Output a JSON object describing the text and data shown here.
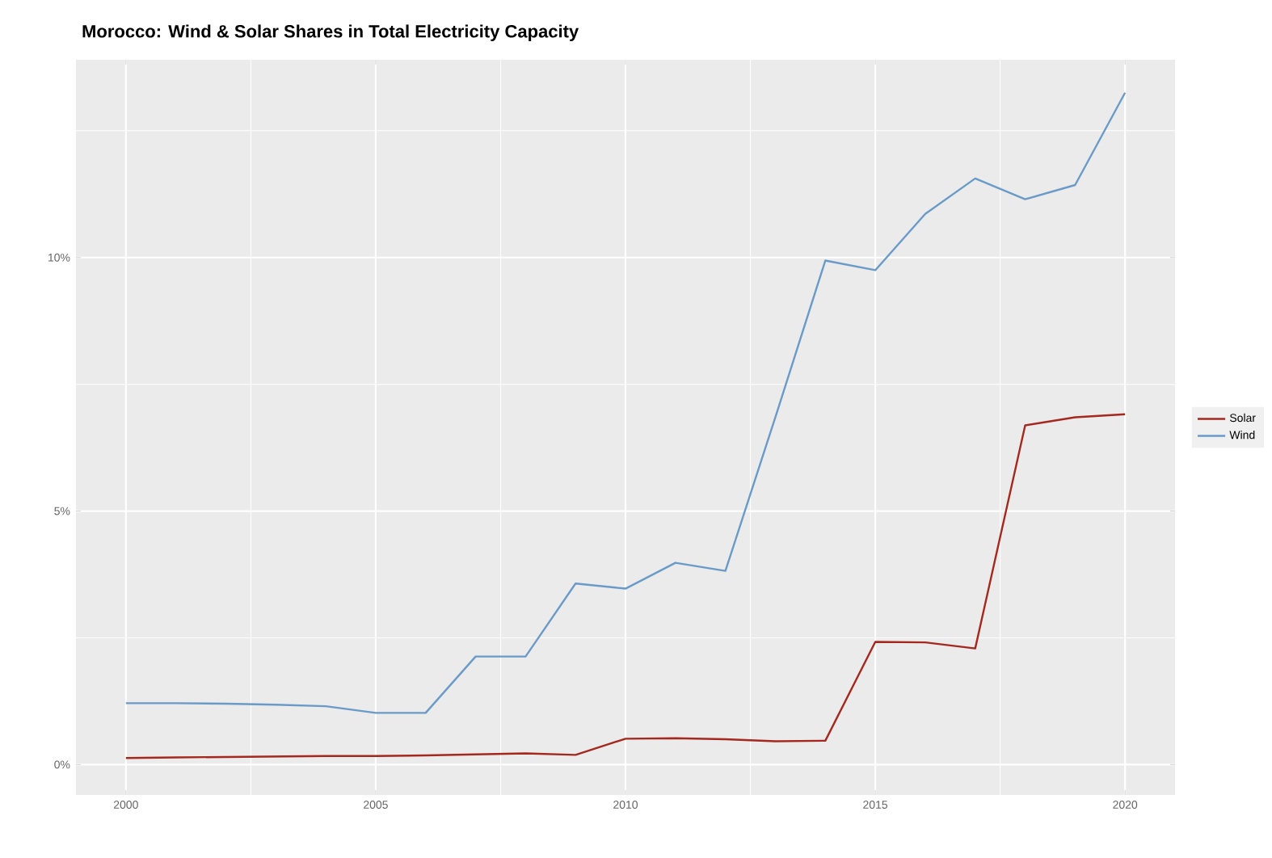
{
  "chart_data": {
    "type": "line",
    "title": "Morocco: Wind & Solar Shares in Total Electricity Capacity",
    "x": [
      2000,
      2001,
      2002,
      2003,
      2004,
      2005,
      2006,
      2007,
      2008,
      2009,
      2010,
      2011,
      2012,
      2013,
      2014,
      2015,
      2016,
      2017,
      2018,
      2019,
      2020
    ],
    "series": [
      {
        "name": "Solar",
        "color": "#a5281e",
        "values": [
          0.13,
          0.14,
          0.15,
          0.16,
          0.17,
          0.17,
          0.18,
          0.2,
          0.22,
          0.19,
          0.51,
          0.52,
          0.5,
          0.46,
          0.47,
          2.42,
          2.41,
          2.29,
          6.69,
          6.85,
          6.91
        ]
      },
      {
        "name": "Wind",
        "color": "#6a9ac8",
        "values": [
          1.21,
          1.21,
          1.2,
          1.18,
          1.15,
          1.02,
          1.02,
          2.13,
          2.13,
          3.57,
          3.47,
          3.98,
          3.82,
          6.85,
          9.94,
          9.75,
          10.86,
          11.56,
          11.15,
          11.43,
          13.25
        ]
      }
    ],
    "xlim": [
      1999,
      2021
    ],
    "xticks": [
      2000,
      2005,
      2010,
      2015,
      2020
    ],
    "ylim": [
      -0.6,
      13.9
    ],
    "yticks": [
      {
        "value": 0,
        "label": "0%"
      },
      {
        "value": 5,
        "label": "5%"
      },
      {
        "value": 10,
        "label": "10%"
      }
    ],
    "grid": true,
    "legend": "right",
    "line_style": "solid",
    "marker": "none"
  }
}
